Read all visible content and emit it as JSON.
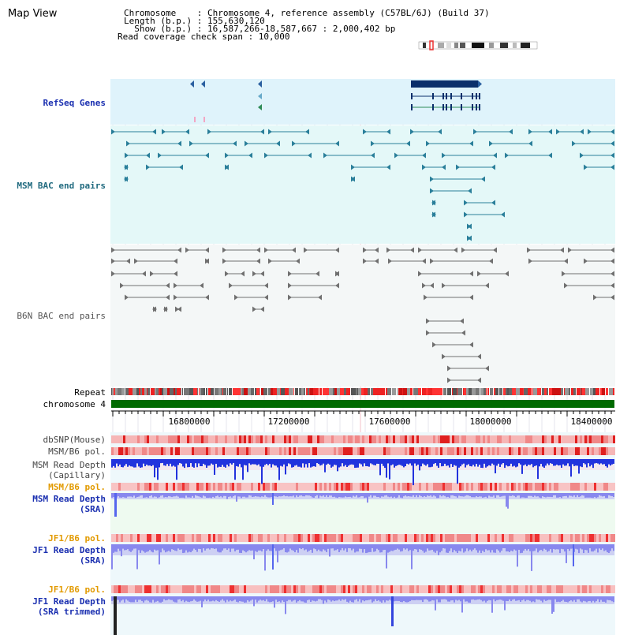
{
  "view_title": "Map View",
  "info": {
    "line1": "Chromosome    : Chromosome 4, reference assembly (C57BL/6J) (Build 37)",
    "line2": "Length (b.p.) : 155,630,120",
    "line3": "  Show (b.p.) : 16,587,266-18,587,667 : 2,000,402 bp",
    "line4": "Read coverage check span : 10,000"
  },
  "tracks": {
    "refseq": "RefSeq Genes",
    "msm_bac": "MSM BAC end pairs",
    "b6n_bac": "B6N BAC end pairs",
    "repeat": "Repeat",
    "chromosome": "chromosome 4",
    "dbsnp": "dbSNP(Mouse)",
    "msm_b6_pol_1": "MSM/B6 pol.",
    "msm_depth_cap_1": "MSM Read Depth",
    "msm_depth_cap_2": "(Capillary)",
    "msm_b6_pol_2": "MSM/B6 pol.",
    "msm_depth_sra_1": "MSM Read Depth",
    "msm_depth_sra_2": "(SRA)",
    "jf1_b6_pol_1": "JF1/B6 pol.",
    "jf1_depth_sra_1": "JF1 Read Depth",
    "jf1_depth_sra_2": "(SRA)",
    "jf1_b6_pol_2": "JF1/B6 pol.",
    "jf1_depth_trim_1": "JF1 Read Depth",
    "jf1_depth_trim_2": "(SRA trimmed)"
  },
  "axis_ticks": [
    "16800000",
    "17200000",
    "17600000",
    "18000000",
    "18400000"
  ],
  "colors": {
    "refseq_bg": "#dff3fb",
    "msm_bg": "#e4f8f8",
    "b6n_bg": "#f2f6f6",
    "msm_feature": "#2a7f9a",
    "b6n_feature": "#707070",
    "refseq_gene": "#0b2f6b",
    "chromosome_bar": "#006a00",
    "snp_red": "#e44",
    "depth_blue": "#2233dd",
    "depth_violet": "#8888ee",
    "label_blue": "#1a2fb0",
    "label_teal": "#206a7f",
    "label_gold": "#e29a00",
    "label_gray": "#444444"
  }
}
